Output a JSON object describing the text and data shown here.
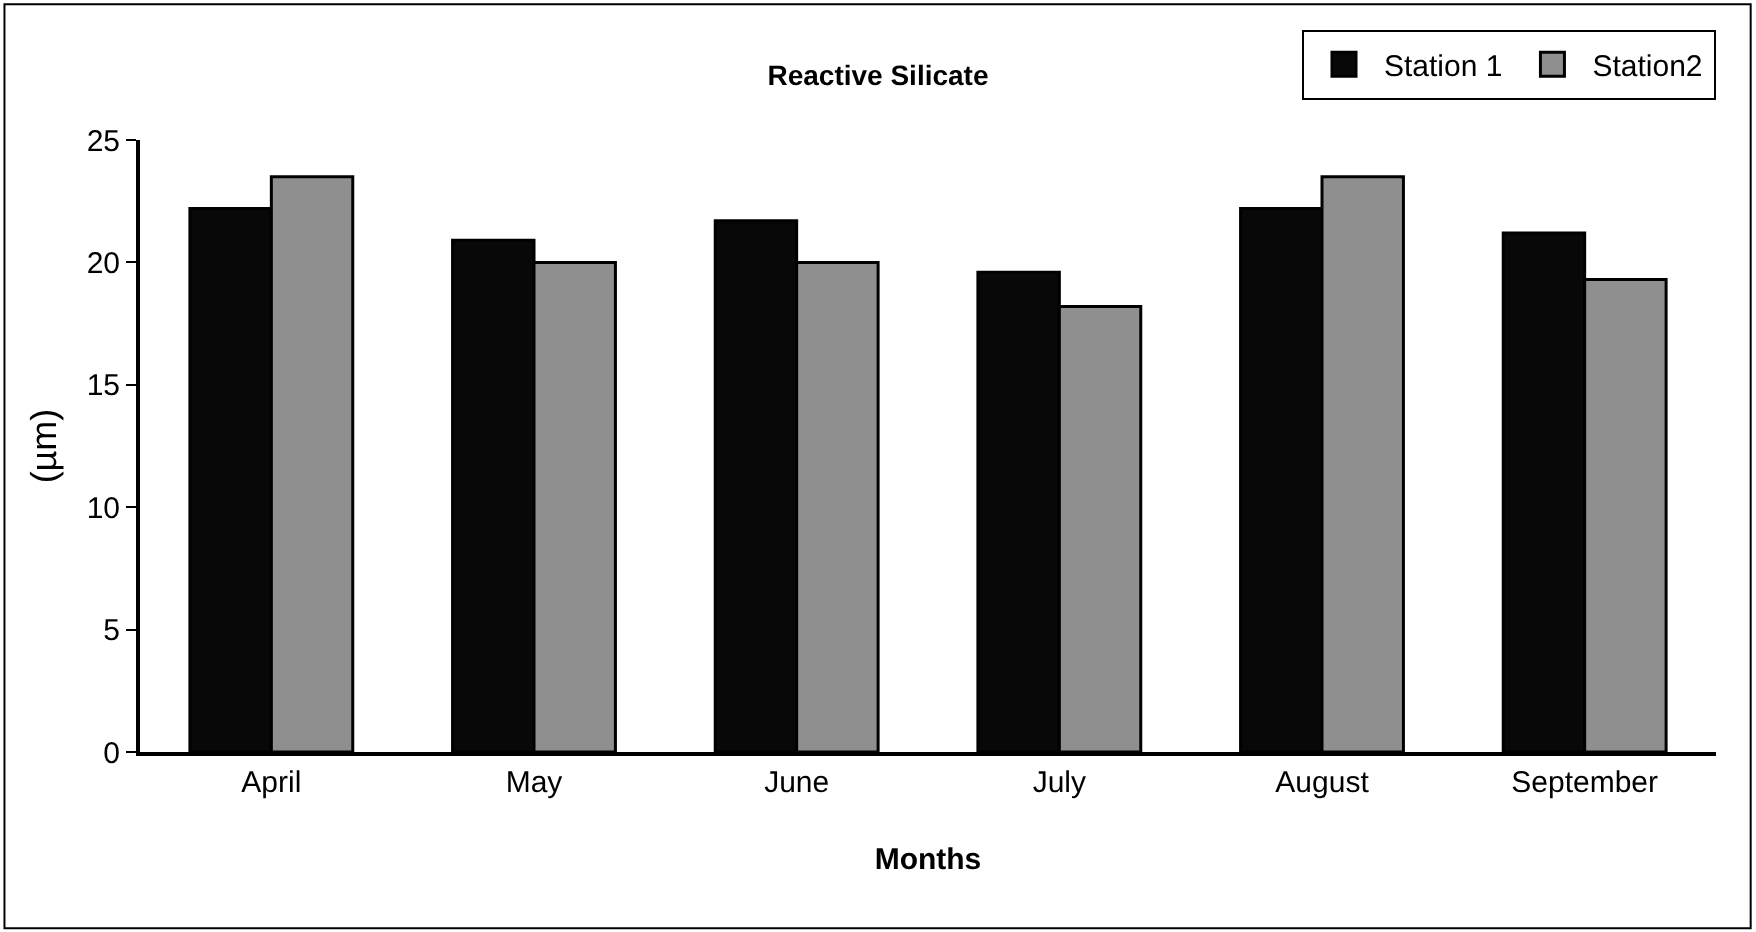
{
  "chart_data": {
    "type": "bar",
    "title": "Reactive Silicate",
    "xlabel": "Months",
    "ylabel": "(µm)",
    "categories": [
      "April",
      "May",
      "June",
      "July",
      "August",
      "September"
    ],
    "series": [
      {
        "name": "Station 1",
        "color": "#080808",
        "values": [
          22.2,
          20.9,
          21.7,
          19.6,
          22.2,
          21.2
        ]
      },
      {
        "name": "Station2",
        "color": "#8f8f8f",
        "values": [
          23.5,
          20.0,
          20.0,
          18.2,
          23.5,
          19.3
        ]
      }
    ],
    "ylim": [
      0,
      25
    ],
    "yticks": [
      0,
      5,
      10,
      15,
      20,
      25
    ],
    "legend": "top right"
  }
}
